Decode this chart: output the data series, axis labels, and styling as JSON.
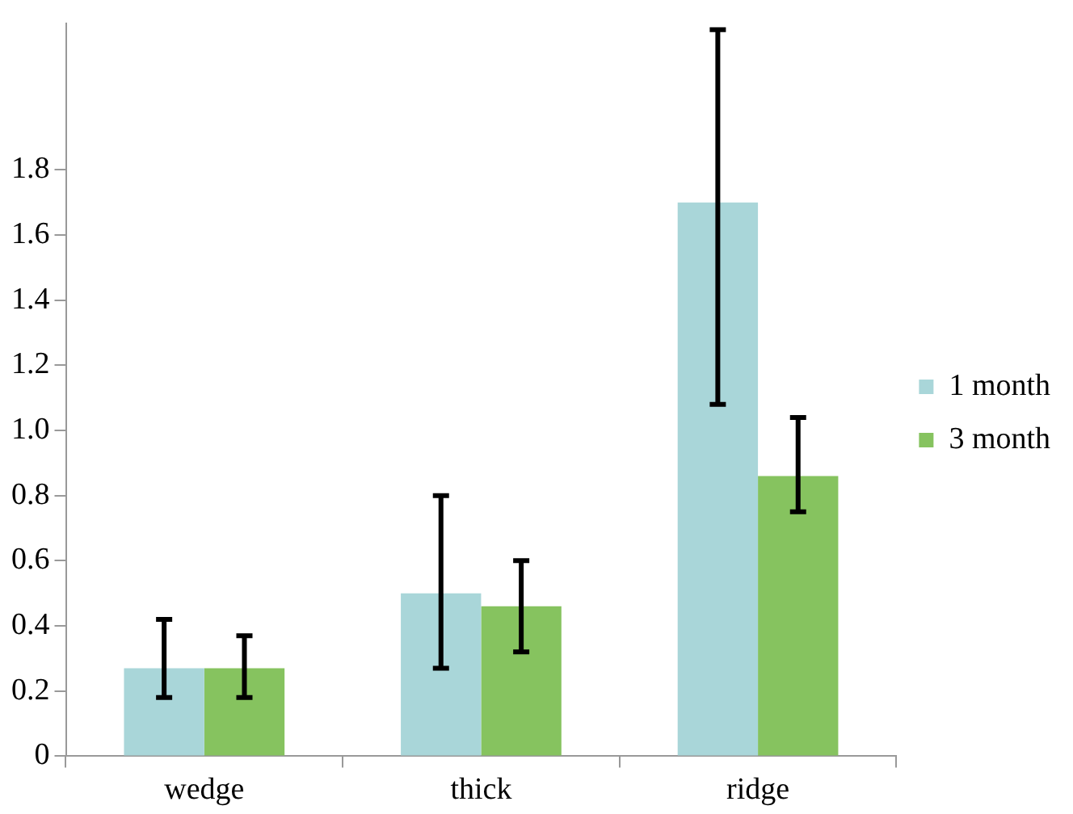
{
  "chart_data": {
    "type": "bar",
    "categories": [
      "wedge",
      "thick",
      "ridge"
    ],
    "series": [
      {
        "name": "1 month",
        "color": "#a9d6d9",
        "values": [
          0.27,
          0.5,
          1.7
        ],
        "errors": [
          [
            0.18,
            0.42
          ],
          [
            0.27,
            0.8
          ],
          [
            1.08,
            2.23
          ]
        ]
      },
      {
        "name": "3 month",
        "color": "#86c35f",
        "values": [
          0.27,
          0.46,
          0.86
        ],
        "errors": [
          [
            0.18,
            0.37
          ],
          [
            0.32,
            0.6
          ],
          [
            0.75,
            1.04
          ]
        ]
      }
    ],
    "ylim": [
      0,
      2.25
    ],
    "yticks": [
      0,
      0.2,
      0.4,
      0.6,
      0.8,
      {
        "value": 1,
        "label": "1.0"
      },
      1.2,
      1.4,
      1.6,
      1.8
    ],
    "grid": false,
    "legend": "right"
  }
}
